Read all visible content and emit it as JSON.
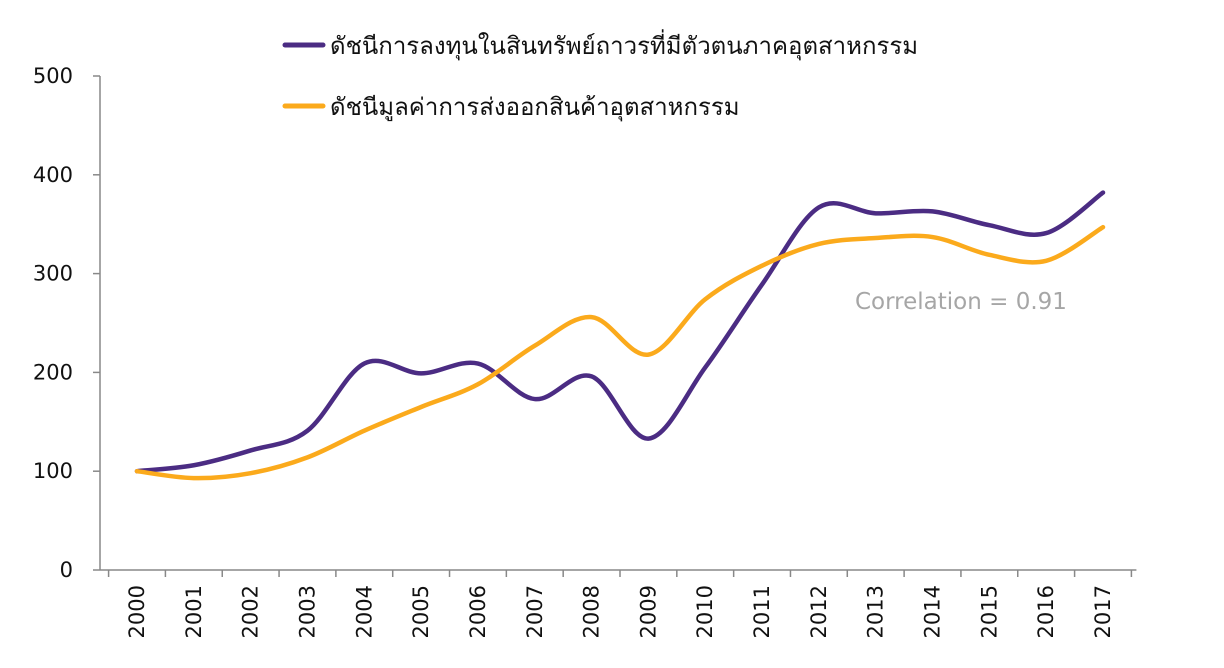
{
  "chart_data": {
    "type": "line",
    "title": "",
    "xlabel": "",
    "ylabel": "",
    "ylim": [
      0,
      500
    ],
    "yticks": [
      0,
      100,
      200,
      300,
      400,
      500
    ],
    "grid": false,
    "legend_placement": "top",
    "smooth": true,
    "categories": [
      "2000",
      "2001",
      "2002",
      "2003",
      "2004",
      "2005",
      "2006",
      "2007",
      "2008",
      "2009",
      "2010",
      "2011",
      "2012",
      "2013",
      "2014",
      "2015",
      "2016",
      "2017"
    ],
    "series": [
      {
        "name": "ดัชนีการลงทุนในสินทรัพย์ถาวรที่มีตัวตนภาคอุตสาหกรรม",
        "color": "#4b2c83",
        "values": [
          100,
          106,
          121,
          141,
          209,
          199,
          209,
          173,
          196,
          133,
          205,
          289,
          367,
          361,
          363,
          349,
          341,
          382
        ]
      },
      {
        "name": "ดัชนีมูลค่าการส่งออกสินค้าอุตสาหกรรม",
        "color": "#fbaa1c",
        "values": [
          100,
          93,
          98,
          114,
          141,
          165,
          188,
          227,
          256,
          218,
          274,
          308,
          330,
          336,
          337,
          319,
          313,
          347
        ]
      }
    ],
    "annotations": [
      {
        "text": "Correlation = 0.91"
      }
    ]
  }
}
